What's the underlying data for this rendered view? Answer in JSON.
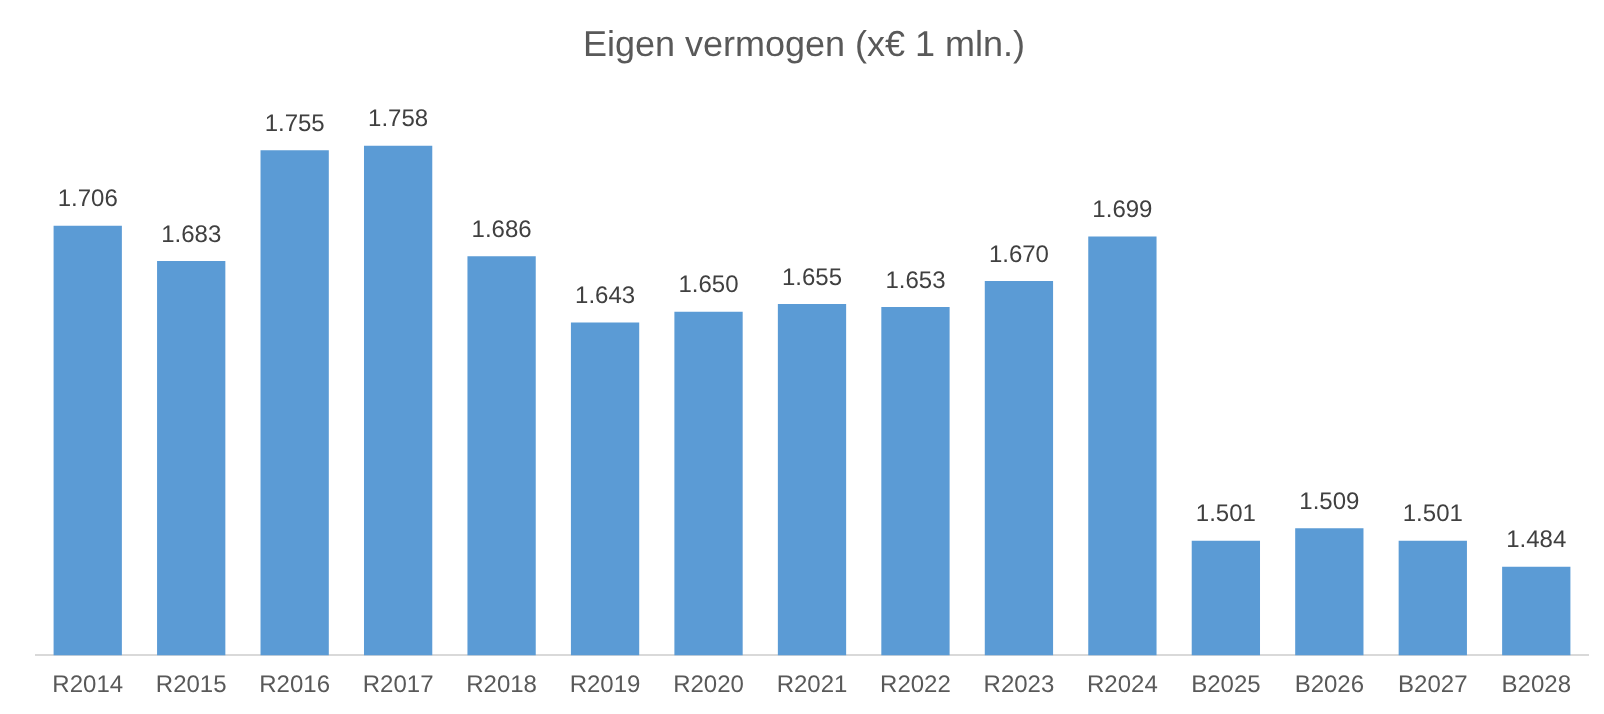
{
  "chart_data": {
    "type": "bar",
    "title": "Eigen vermogen (x€ 1 mln.)",
    "categories": [
      "R2014",
      "R2015",
      "R2016",
      "R2017",
      "R2018",
      "R2019",
      "R2020",
      "R2021",
      "R2022",
      "R2023",
      "R2024",
      "B2025",
      "B2026",
      "B2027",
      "B2028"
    ],
    "values": [
      1706,
      1683,
      1755,
      1758,
      1686,
      1643,
      1650,
      1655,
      1653,
      1670,
      1699,
      1501,
      1509,
      1501,
      1484
    ],
    "value_labels": [
      "1.706",
      "1.683",
      "1.755",
      "1.758",
      "1.686",
      "1.643",
      "1.650",
      "1.655",
      "1.653",
      "1.670",
      "1.699",
      "1.501",
      "1.509",
      "1.501",
      "1.484"
    ],
    "color": "#5b9bd5",
    "tick_labels": "x",
    "grid": false,
    "legend": false
  }
}
